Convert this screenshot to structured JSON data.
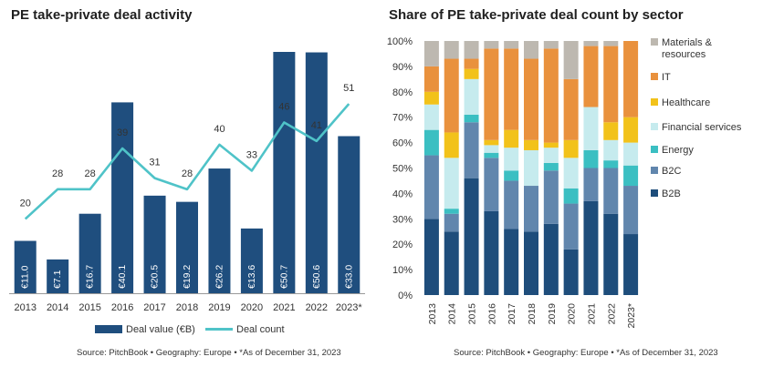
{
  "left_chart": {
    "title": "PE take-private deal activity",
    "source": "Source: PitchBook • Geography: Europe • *As of December 31, 2023",
    "legend": {
      "bar": "Deal value (€B)",
      "line": "Deal count"
    }
  },
  "right_chart": {
    "title": "Share of PE take-private deal count by sector",
    "source": "Source: PitchBook • Geography: Europe • *As of December 31, 2023"
  },
  "colors": {
    "bar": "#1f4e7e",
    "line": "#4fc3c8",
    "B2B": "#1e4d7b",
    "B2C": "#6186ad",
    "Energy": "#3bbfc2",
    "Financial services": "#c6ebee",
    "Healthcare": "#f2c21a",
    "IT": "#e9913d",
    "Materials & resources": "#bdb8b0"
  },
  "chart_data": [
    {
      "type": "bar",
      "categories": [
        "2013",
        "2014",
        "2015",
        "2016",
        "2017",
        "2018",
        "2019",
        "2020",
        "2021",
        "2022",
        "2023*"
      ],
      "series": [
        {
          "name": "Deal value (€B)",
          "type": "bar",
          "values": [
            11.0,
            7.1,
            16.7,
            40.1,
            20.5,
            19.2,
            26.2,
            13.6,
            50.7,
            50.6,
            33.0
          ],
          "labels": [
            "€11.0",
            "€7.1",
            "€16.7",
            "€40.1",
            "€20.5",
            "€19.2",
            "€26.2",
            "€13.6",
            "€50.7",
            "€50.6",
            "€33.0"
          ]
        },
        {
          "name": "Deal count",
          "type": "line",
          "values": [
            20,
            28,
            28,
            39,
            31,
            28,
            40,
            33,
            46,
            41,
            51
          ]
        }
      ],
      "bar_ylim": [
        0,
        50.7
      ],
      "line_ylim": [
        0,
        65
      ]
    },
    {
      "type": "bar",
      "stacked": true,
      "categories": [
        "2013",
        "2014",
        "2015",
        "2016",
        "2017",
        "2018",
        "2019",
        "2020",
        "2021",
        "2022",
        "2023*"
      ],
      "y_ticks": [
        "0%",
        "10%",
        "20%",
        "30%",
        "40%",
        "50%",
        "60%",
        "70%",
        "80%",
        "90%",
        "100%"
      ],
      "ylim": [
        0,
        100
      ],
      "legend_position": "right",
      "series": [
        {
          "name": "B2B",
          "values": [
            30,
            25,
            46,
            33,
            26,
            25,
            28,
            18,
            37,
            32,
            24
          ]
        },
        {
          "name": "B2C",
          "values": [
            25,
            7,
            22,
            21,
            19,
            18,
            21,
            18,
            13,
            18,
            19
          ]
        },
        {
          "name": "Energy",
          "values": [
            10,
            2,
            3,
            2,
            4,
            0,
            3,
            6,
            7,
            3,
            8
          ]
        },
        {
          "name": "Financial services",
          "values": [
            10,
            20,
            14,
            3,
            9,
            14,
            6,
            12,
            17,
            8,
            9
          ]
        },
        {
          "name": "Healthcare",
          "values": [
            5,
            10,
            4,
            2,
            7,
            4,
            2,
            7,
            0,
            7,
            10
          ]
        },
        {
          "name": "IT",
          "values": [
            10,
            29,
            4,
            36,
            32,
            32,
            37,
            24,
            24,
            30,
            30
          ]
        },
        {
          "name": "Materials & resources",
          "values": [
            10,
            7,
            7,
            3,
            3,
            7,
            3,
            15,
            2,
            2,
            0
          ]
        }
      ],
      "legend_order": [
        "Materials & resources",
        "IT",
        "Healthcare",
        "Financial services",
        "Energy",
        "B2C",
        "B2B"
      ]
    }
  ]
}
